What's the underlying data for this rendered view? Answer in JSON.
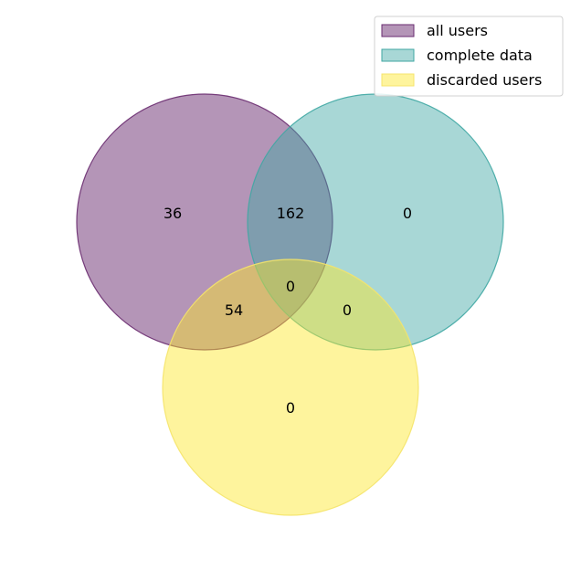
{
  "sets": [
    {
      "name": "all users",
      "color": "#6a2c70",
      "fill_color": "#b29bbe"
    },
    {
      "name": "complete data",
      "color": "#3fa7a3",
      "fill_color": "#a8d5d4"
    },
    {
      "name": "discarded users",
      "color": "#f5e46a",
      "fill_color": "#fdf4a2"
    }
  ],
  "regions": {
    "only_all_users": "36",
    "all_users_and_complete_data": "162",
    "only_complete_data": "0",
    "all_three": "0",
    "all_users_and_discarded_users": "54",
    "complete_data_and_discarded_users": "0",
    "only_discarded_users": "0"
  }
}
